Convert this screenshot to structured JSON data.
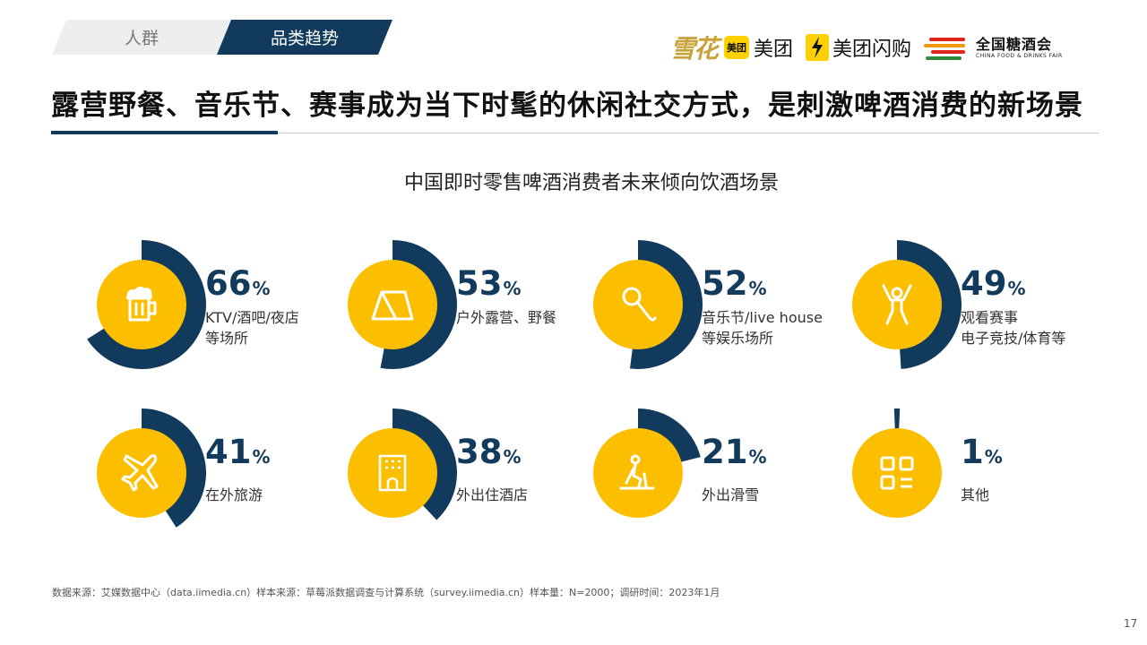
{
  "tabs": {
    "people": "人群",
    "category_trend": "品类趋势"
  },
  "logos": {
    "snow": "雪花",
    "meituan_badge": "美团",
    "meituan": "美团",
    "shangou": "美团闪购",
    "fair_cn": "全国糖酒会",
    "fair_en": "CHINA FOOD & DRINKS FAIR"
  },
  "headline": "露营野餐、音乐节、赛事成为当下时髦的休闲社交方式，是刺激啤酒消费的新场景",
  "colors": {
    "navy": "#123a5c",
    "yellow": "#fbbf00",
    "text": "#333333"
  },
  "chart_data": {
    "type": "pie",
    "title": "中国即时零售啤酒消费者未来倾向饮酒场景",
    "unit": "%",
    "items": [
      {
        "value": 66,
        "label": [
          "KTV/酒吧/夜店",
          "等场所"
        ],
        "icon": "beer-mug-icon"
      },
      {
        "value": 53,
        "label": [
          "户外露营、野餐"
        ],
        "icon": "tent-icon"
      },
      {
        "value": 52,
        "label": [
          "音乐节/live house",
          "等娱乐场所"
        ],
        "icon": "microphone-icon"
      },
      {
        "value": 49,
        "label": [
          "观看赛事",
          "电子竞技/体育等"
        ],
        "icon": "cheering-person-icon"
      },
      {
        "value": 41,
        "label": [
          "在外旅游"
        ],
        "icon": "airplane-icon"
      },
      {
        "value": 38,
        "label": [
          "外出住酒店"
        ],
        "icon": "hotel-icon"
      },
      {
        "value": 21,
        "label": [
          "外出滑雪"
        ],
        "icon": "skiing-icon"
      },
      {
        "value": 1,
        "label": [
          "其他"
        ],
        "icon": "grid-apps-icon"
      }
    ]
  },
  "source": "数据来源：艾媒数据中心（data.iimedia.cn）样本来源：草莓派数据调查与计算系统（survey.iimedia.cn）样本量：N=2000；调研时间：2023年1月",
  "page_number": "17"
}
